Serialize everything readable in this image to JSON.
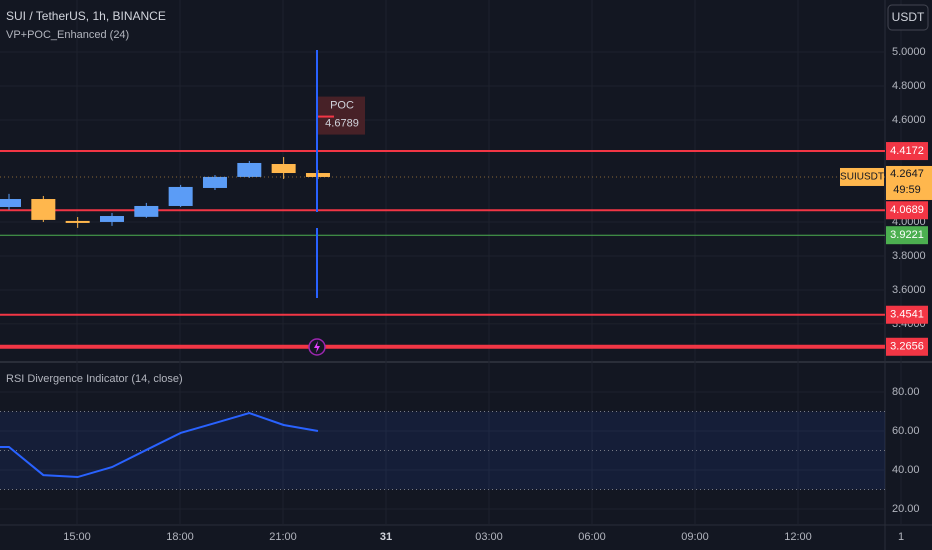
{
  "header": {
    "symbol": "SUI / TetherUS, 1h, BINANCE",
    "indicator": "VP+POC_Enhanced (24)",
    "currency": "USDT"
  },
  "chart_data": [
    {
      "type": "candlestick",
      "open": [
        4.088,
        4.135,
        4.006,
        4.0,
        4.03,
        4.094,
        4.2,
        4.265,
        4.341,
        4.288
      ],
      "high": [
        4.165,
        4.153,
        4.029,
        4.053,
        4.112,
        4.218,
        4.276,
        4.359,
        4.382,
        4.306
      ],
      "low": [
        4.071,
        4.0,
        3.965,
        3.977,
        4.024,
        4.088,
        4.188,
        4.259,
        4.253,
        4.253
      ],
      "close": [
        4.135,
        4.012,
        4.0,
        4.035,
        4.094,
        4.206,
        4.265,
        4.347,
        4.288,
        4.2647
      ],
      "up_color": "#5b9cf6",
      "down_color": "#ffb74d",
      "ylim": [
        3.176,
        5.306
      ],
      "yticks": [
        {
          "value": 5.0,
          "label": "5.0000"
        },
        {
          "value": 4.8,
          "label": "4.8000"
        },
        {
          "value": 4.6,
          "label": "4.6000"
        },
        {
          "value": 4.0,
          "label": "4.0000"
        },
        {
          "value": 3.8,
          "label": "3.8000"
        },
        {
          "value": 3.6,
          "label": "3.6000"
        },
        {
          "value": 3.4,
          "label": "3.4000"
        }
      ],
      "levels": [
        {
          "value": 4.4172,
          "color": "#f23645"
        },
        {
          "value": 4.0689,
          "color": "#f23645"
        },
        {
          "value": 3.9221,
          "color": "#4caf50"
        },
        {
          "value": 3.4541,
          "color": "#f23645"
        },
        {
          "value": 3.2656,
          "color": "#f23645"
        }
      ],
      "poc": {
        "label": "POC",
        "value": 4.6789
      },
      "last": {
        "name": "SUIUSDT",
        "value": 4.2647,
        "countdown": "49:59",
        "color": "#ffb74d"
      }
    },
    {
      "type": "line",
      "title": "RSI Divergence Indicator (14, close)",
      "values": [
        51.8,
        37.4,
        36.4,
        41.5,
        50.3,
        59.0,
        64.1,
        69.2,
        63.1,
        60.0
      ],
      "color": "#2962ff",
      "ylim": [
        11.8,
        95.4
      ],
      "yticks": [
        {
          "value": 80,
          "label": "80.00"
        },
        {
          "value": 60,
          "label": "60.00"
        },
        {
          "value": 40,
          "label": "40.00"
        },
        {
          "value": 20,
          "label": "20.00"
        }
      ],
      "levels": [
        70,
        50,
        30
      ]
    }
  ],
  "time_axis": [
    "15:00",
    "18:00",
    "21:00",
    "31",
    "03:00",
    "06:00",
    "09:00",
    "12:00",
    "1"
  ]
}
